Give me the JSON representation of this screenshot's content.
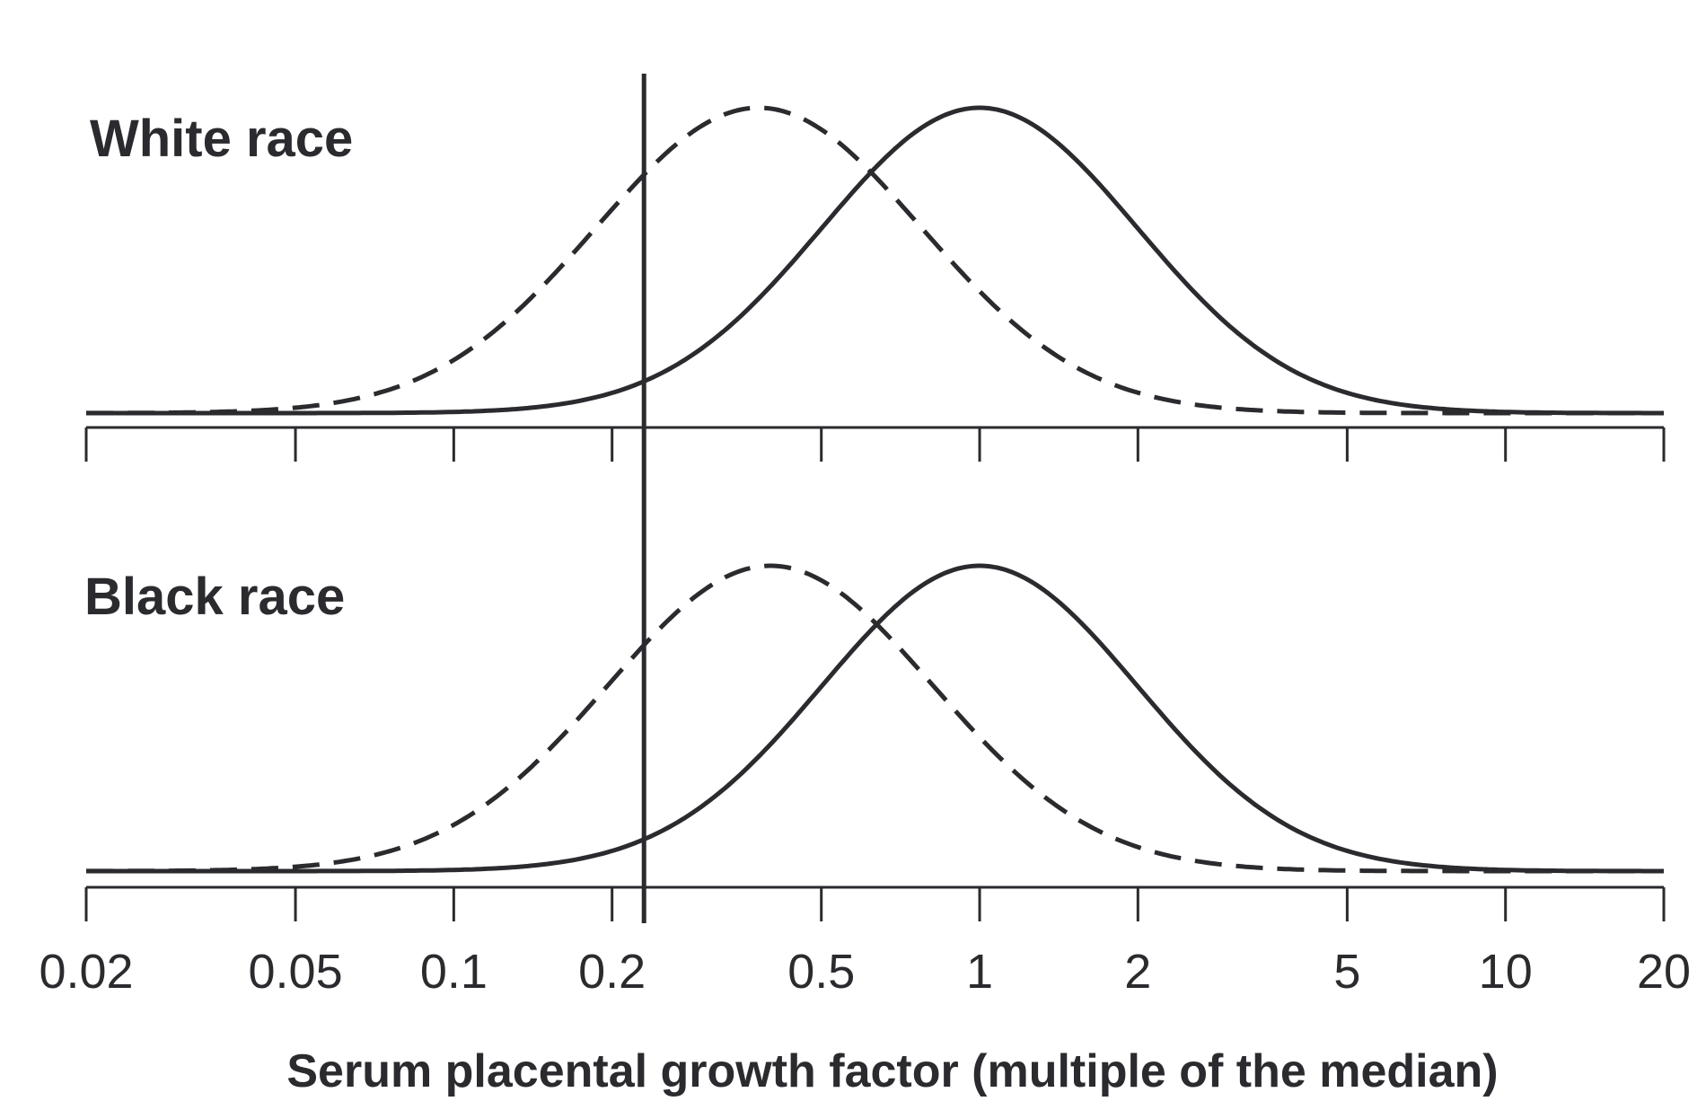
{
  "colors": {
    "ink": "#2b2b2f",
    "background": "#ffffff"
  },
  "chart_data": [
    {
      "type": "line",
      "panel": "top",
      "panel_label": "White race",
      "x_scale": "log",
      "xlim": [
        0.02,
        20
      ],
      "x_ticks": [
        0.02,
        0.05,
        0.1,
        0.2,
        0.5,
        1,
        2,
        5,
        10,
        20
      ],
      "x_tick_labels": [],
      "reference_line_x": 0.23,
      "series": [
        {
          "style": "solid",
          "distribution": "log-normal density",
          "peak_x": 1.0,
          "log10_sd": 0.3
        },
        {
          "style": "dashed",
          "distribution": "log-normal density",
          "peak_x": 0.38,
          "log10_sd": 0.31
        }
      ],
      "ylim": [
        0,
        1
      ],
      "grid": false
    },
    {
      "type": "line",
      "panel": "bottom",
      "panel_label": "Black race",
      "x_scale": "log",
      "xlim": [
        0.02,
        20
      ],
      "x_ticks": [
        0.02,
        0.05,
        0.1,
        0.2,
        0.5,
        1,
        2,
        5,
        10,
        20
      ],
      "x_tick_labels": [
        "0.02",
        "0.05",
        "0.1",
        "0.2",
        "0.5",
        "1",
        "2",
        "5",
        "10",
        "20"
      ],
      "xlabel": "Serum placental growth factor (multiple of the median)",
      "reference_line_x": 0.23,
      "series": [
        {
          "style": "solid",
          "distribution": "log-normal density",
          "peak_x": 1.0,
          "log10_sd": 0.3
        },
        {
          "style": "dashed",
          "distribution": "log-normal density",
          "peak_x": 0.4,
          "log10_sd": 0.31
        }
      ],
      "ylim": [
        0,
        1
      ],
      "grid": false
    }
  ]
}
